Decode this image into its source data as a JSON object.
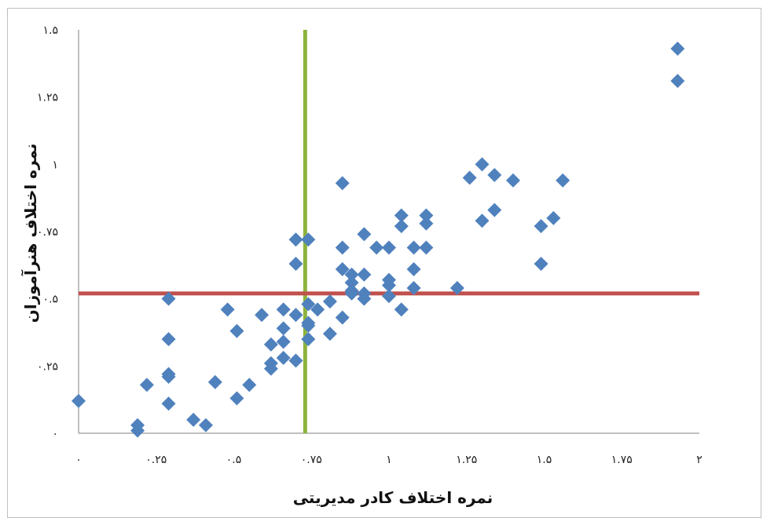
{
  "chart_data": {
    "type": "scatter",
    "title": "",
    "xlabel": "نمره اختلاف کادر مدیریتی",
    "ylabel": "نمره اختلاف هنرآموزان",
    "xlim": [
      0,
      2
    ],
    "ylim": [
      0,
      1.5
    ],
    "x_tick_labels": [
      "۰",
      "۰.۲۵",
      "۰.۵",
      "۰.۷۵",
      "۱",
      "۱.۲۵",
      "۱.۵",
      "۱.۷۵",
      "۲"
    ],
    "y_tick_labels": [
      "۰",
      "۰.۲۵",
      "۰.۵",
      "۰.۷۵",
      "۱",
      "۱.۲۵",
      "۱.۵"
    ],
    "x_tick_values": [
      0,
      0.25,
      0.5,
      0.75,
      1,
      1.25,
      1.5,
      1.75,
      2
    ],
    "y_tick_values": [
      0,
      0.25,
      0.5,
      0.75,
      1,
      1.25,
      1.5
    ],
    "grid": false,
    "reference_lines": [
      {
        "orientation": "vertical",
        "value": 0.73,
        "color": "#8cb43c"
      },
      {
        "orientation": "horizontal",
        "value": 0.52,
        "color": "#c0504d"
      }
    ],
    "marker_color": "#4f81bd",
    "points": [
      [
        0.0,
        0.12
      ],
      [
        0.19,
        0.03
      ],
      [
        0.19,
        0.01
      ],
      [
        0.22,
        0.18
      ],
      [
        0.29,
        0.5
      ],
      [
        0.29,
        0.35
      ],
      [
        0.29,
        0.22
      ],
      [
        0.29,
        0.21
      ],
      [
        0.29,
        0.11
      ],
      [
        0.37,
        0.05
      ],
      [
        0.41,
        0.03
      ],
      [
        0.44,
        0.19
      ],
      [
        0.48,
        0.46
      ],
      [
        0.51,
        0.38
      ],
      [
        0.51,
        0.13
      ],
      [
        0.55,
        0.18
      ],
      [
        0.59,
        0.44
      ],
      [
        0.62,
        0.33
      ],
      [
        0.62,
        0.26
      ],
      [
        0.62,
        0.24
      ],
      [
        0.66,
        0.46
      ],
      [
        0.66,
        0.39
      ],
      [
        0.66,
        0.34
      ],
      [
        0.66,
        0.28
      ],
      [
        0.7,
        0.72
      ],
      [
        0.7,
        0.63
      ],
      [
        0.7,
        0.44
      ],
      [
        0.7,
        0.27
      ],
      [
        0.74,
        0.72
      ],
      [
        0.74,
        0.48
      ],
      [
        0.74,
        0.41
      ],
      [
        0.74,
        0.4
      ],
      [
        0.74,
        0.35
      ],
      [
        0.77,
        0.46
      ],
      [
        0.81,
        0.49
      ],
      [
        0.81,
        0.37
      ],
      [
        0.85,
        0.69
      ],
      [
        0.85,
        0.61
      ],
      [
        0.85,
        0.93
      ],
      [
        0.85,
        0.43
      ],
      [
        0.88,
        0.59
      ],
      [
        0.88,
        0.56
      ],
      [
        0.88,
        0.53
      ],
      [
        0.88,
        0.52
      ],
      [
        0.92,
        0.74
      ],
      [
        0.92,
        0.59
      ],
      [
        0.92,
        0.52
      ],
      [
        0.92,
        0.5
      ],
      [
        0.96,
        0.69
      ],
      [
        1.0,
        0.69
      ],
      [
        1.0,
        0.57
      ],
      [
        1.0,
        0.55
      ],
      [
        1.0,
        0.51
      ],
      [
        1.04,
        0.81
      ],
      [
        1.04,
        0.77
      ],
      [
        1.04,
        0.46
      ],
      [
        1.08,
        0.69
      ],
      [
        1.08,
        0.61
      ],
      [
        1.08,
        0.54
      ],
      [
        1.12,
        0.81
      ],
      [
        1.12,
        0.78
      ],
      [
        1.12,
        0.69
      ],
      [
        1.22,
        0.54
      ],
      [
        1.26,
        0.95
      ],
      [
        1.3,
        1.0
      ],
      [
        1.3,
        0.79
      ],
      [
        1.34,
        0.96
      ],
      [
        1.34,
        0.83
      ],
      [
        1.4,
        0.94
      ],
      [
        1.49,
        0.77
      ],
      [
        1.49,
        0.63
      ],
      [
        1.53,
        0.8
      ],
      [
        1.56,
        0.94
      ],
      [
        1.93,
        1.43
      ],
      [
        1.93,
        1.31
      ]
    ]
  }
}
